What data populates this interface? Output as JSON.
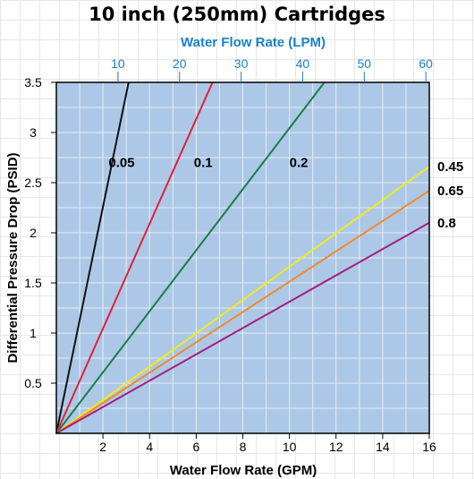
{
  "chart_data": {
    "type": "line",
    "title": "10 inch (250mm) Cartridges",
    "xlabel": "Water Flow Rate (GPM)",
    "x2label": "Water Flow Rate (LPM)",
    "ylabel": "Differential Pressure Drop (PSID)",
    "xlim": [
      0,
      16
    ],
    "ylim": [
      0,
      3.5
    ],
    "x2lim": [
      0,
      60.56
    ],
    "xticks": [
      2,
      4,
      6,
      8,
      10,
      12,
      14,
      16
    ],
    "yticks": [
      0.5,
      1,
      1.5,
      2,
      2.5,
      3,
      3.5
    ],
    "x2ticks": [
      10,
      20,
      30,
      40,
      50,
      60
    ],
    "grid": true,
    "plot_bg": "#acc8e6",
    "series": [
      {
        "name": "0.05",
        "color": "#111111",
        "x": [
          0,
          3.1
        ],
        "y": [
          0,
          3.5
        ],
        "label_at": [
          2.8,
          2.7
        ]
      },
      {
        "name": "0.1",
        "color": "#e0203a",
        "x": [
          0,
          6.7
        ],
        "y": [
          0,
          3.5
        ],
        "label_at": [
          6.3,
          2.7
        ]
      },
      {
        "name": "0.2",
        "color": "#1a7d46",
        "x": [
          0,
          11.5
        ],
        "y": [
          0,
          3.5
        ],
        "label_at": [
          10.4,
          2.7
        ]
      },
      {
        "name": "0.45",
        "color": "#f5ea1c",
        "x": [
          0,
          16
        ],
        "y": [
          0,
          2.66
        ],
        "label_at": [
          17.0,
          2.66
        ]
      },
      {
        "name": "0.65",
        "color": "#f08a2c",
        "x": [
          0,
          16
        ],
        "y": [
          0,
          2.42
        ],
        "label_at": [
          17.0,
          2.42
        ]
      },
      {
        "name": "0.8",
        "color": "#a51d7e",
        "x": [
          0,
          16
        ],
        "y": [
          0,
          2.1
        ],
        "label_at": [
          17.0,
          2.1
        ]
      }
    ]
  }
}
